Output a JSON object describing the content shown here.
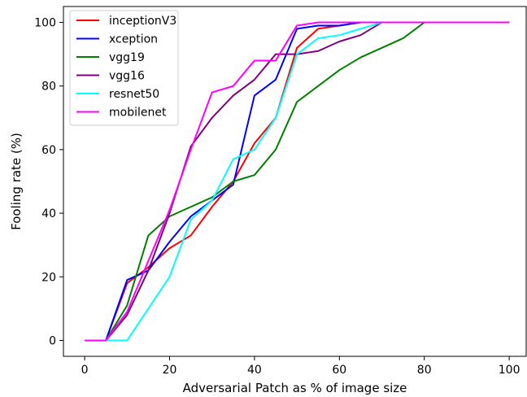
{
  "chart_data": {
    "type": "line",
    "xlabel": "Adversarial Patch as % of image size",
    "ylabel": "Fooling rate (%)",
    "xlim": [
      -5,
      104
    ],
    "ylim": [
      -5,
      105
    ],
    "xticks": [
      0,
      20,
      40,
      60,
      80,
      100
    ],
    "yticks": [
      0,
      20,
      40,
      60,
      80,
      100
    ],
    "grid": false,
    "legend_position": "top-left",
    "series": [
      {
        "name": "inceptionV3",
        "color": "#ff0000",
        "x": [
          0,
          5,
          10,
          15,
          20,
          25,
          30,
          35,
          40,
          45,
          50,
          55,
          60,
          65,
          70,
          75,
          80,
          85,
          90,
          95,
          100
        ],
        "y": [
          0,
          0,
          18,
          23,
          29,
          33,
          42,
          50,
          62,
          70,
          92,
          98,
          99,
          100,
          100,
          100,
          100,
          100,
          100,
          100,
          100
        ]
      },
      {
        "name": "xception",
        "color": "#0000ff",
        "x": [
          0,
          5,
          10,
          15,
          20,
          25,
          30,
          35,
          40,
          45,
          50,
          55,
          60,
          65,
          70,
          75,
          80,
          85,
          90,
          95,
          100
        ],
        "y": [
          0,
          0,
          19,
          22,
          31,
          39,
          44,
          49,
          77,
          82,
          98,
          99,
          99,
          100,
          100,
          100,
          100,
          100,
          100,
          100,
          100
        ]
      },
      {
        "name": "vgg19",
        "color": "#008000",
        "x": [
          0,
          5,
          10,
          15,
          20,
          25,
          30,
          35,
          40,
          45,
          50,
          55,
          60,
          65,
          70,
          75,
          80,
          85,
          90,
          95,
          100
        ],
        "y": [
          0,
          0,
          11,
          33,
          39,
          42,
          45,
          50,
          52,
          60,
          75,
          80,
          85,
          89,
          92,
          95,
          100,
          100,
          100,
          100,
          100
        ]
      },
      {
        "name": "vgg16",
        "color": "#800080",
        "x": [
          0,
          5,
          10,
          15,
          20,
          25,
          30,
          35,
          40,
          45,
          50,
          55,
          60,
          65,
          70,
          75,
          80,
          85,
          90,
          95,
          100
        ],
        "y": [
          0,
          0,
          8,
          22,
          40,
          61,
          70,
          77,
          82,
          90,
          90,
          91,
          94,
          96,
          100,
          100,
          100,
          100,
          100,
          100,
          100
        ]
      },
      {
        "name": "resnet50",
        "color": "#00ffff",
        "x": [
          0,
          5,
          10,
          15,
          20,
          25,
          30,
          35,
          40,
          45,
          50,
          55,
          60,
          65,
          70,
          75,
          80,
          85,
          90,
          95,
          100
        ],
        "y": [
          0,
          0,
          0,
          10,
          20,
          38,
          44,
          57,
          60,
          70,
          90,
          95,
          96,
          98,
          100,
          100,
          100,
          100,
          100,
          100,
          100
        ]
      },
      {
        "name": "mobilenet",
        "color": "#ff00ff",
        "x": [
          0,
          5,
          10,
          15,
          20,
          25,
          30,
          35,
          40,
          45,
          50,
          55,
          60,
          65,
          70,
          75,
          80,
          85,
          90,
          95,
          100
        ],
        "y": [
          0,
          0,
          9,
          25,
          41,
          60,
          78,
          80,
          88,
          88,
          99,
          100,
          100,
          100,
          100,
          100,
          100,
          100,
          100,
          100,
          100
        ]
      }
    ]
  }
}
